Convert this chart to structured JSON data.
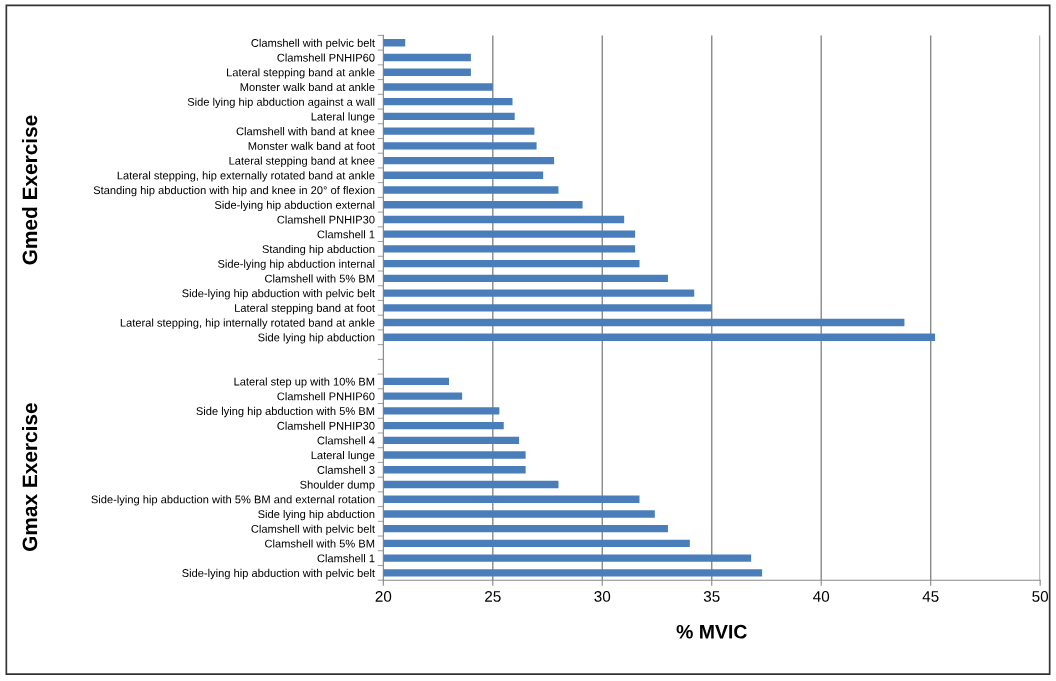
{
  "chart_data": {
    "type": "bar",
    "orientation": "horizontal",
    "xlabel": "% MVIC",
    "categories": [
      "Clamshell with pelvic belt",
      "Clamshell PNHIP60",
      "Lateral stepping band at ankle",
      "Monster walk band at ankle",
      "Side lying hip abduction against a wall",
      "Lateral lunge",
      "Clamshell with band at knee",
      "Monster walk band at foot",
      "Lateral stepping band at knee",
      "Lateral stepping, hip externally rotated band at ankle",
      "Standing hip abduction with hip and knee in 20° of flexion",
      "Side-lying hip abduction external",
      "Clamshell PNHIP30",
      "Clamshell 1",
      "Standing hip abduction",
      "Side-lying hip abduction internal",
      "Clamshell with 5% BM",
      "Side-lying hip abduction with pelvic belt",
      "Lateral stepping band at foot",
      "Lateral stepping, hip internally rotated band at ankle",
      "Side lying hip abduction",
      null,
      null,
      "Lateral step up with 10% BM",
      "Clamshell PNHIP60",
      "Side lying hip abduction with 5% BM",
      "Clamshell PNHIP30",
      "Clamshell 4",
      "Lateral lunge",
      "Clamshell 3",
      "Shoulder dump",
      "Side-lying hip abduction with 5% BM and external rotation",
      "Side lying hip abduction",
      "Clamshell with pelvic belt",
      "Clamshell with 5% BM",
      "Clamshell 1",
      "Side-lying hip abduction with pelvic belt"
    ],
    "values": [
      21.0,
      24.0,
      24.0,
      25.0,
      25.9,
      26.0,
      26.9,
      27.0,
      27.8,
      27.3,
      28.0,
      29.1,
      31.0,
      31.5,
      31.5,
      31.7,
      33.0,
      34.2,
      35.0,
      43.8,
      45.2,
      null,
      null,
      23.0,
      23.6,
      25.3,
      25.5,
      26.2,
      26.5,
      26.5,
      28.0,
      31.7,
      32.4,
      33.0,
      34.0,
      36.8,
      37.3
    ],
    "color": "#4a7ebb",
    "xlim": [
      20,
      50
    ],
    "xticks": [
      20,
      25,
      30,
      35,
      40,
      45,
      50
    ],
    "grid": "x",
    "annotations": [
      "Gmed Exercise",
      "Gmax Exercise"
    ]
  }
}
